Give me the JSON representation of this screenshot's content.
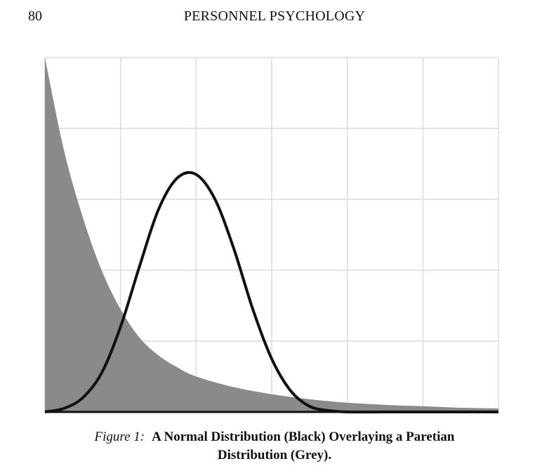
{
  "header": {
    "page_number": "80",
    "journal": "PERSONNEL PSYCHOLOGY"
  },
  "figure": {
    "label": "Figure 1:",
    "title_line1": "A Normal Distribution (Black) Overlaying a Paretian",
    "title_line2": "Distribution (Grey)."
  },
  "chart_data": {
    "type": "area",
    "title": "",
    "xlabel": "",
    "ylabel": "",
    "xlim": [
      0,
      6
    ],
    "ylim": [
      0,
      5
    ],
    "grid": true,
    "legend": "none",
    "series": [
      {
        "style": "grey filled area",
        "color": "#8a8a8a",
        "x": [
          0,
          0.25,
          0.5,
          0.75,
          1,
          1.25,
          1.5,
          1.75,
          2,
          2.5,
          3,
          3.5,
          4,
          4.5,
          5,
          5.5,
          6
        ],
        "y": [
          5,
          3.7,
          2.75,
          2.0,
          1.45,
          1.05,
          0.8,
          0.63,
          0.5,
          0.35,
          0.25,
          0.18,
          0.13,
          0.1,
          0.08,
          0.06,
          0.05
        ]
      },
      {
        "style": "black line",
        "color": "#111111",
        "x": [
          0,
          0.25,
          0.5,
          0.75,
          1,
          1.25,
          1.5,
          1.75,
          2,
          2.25,
          2.5,
          2.75,
          3,
          3.25,
          3.5,
          3.75,
          4,
          4.5,
          5,
          5.5,
          6
        ],
        "y": [
          0,
          0.05,
          0.2,
          0.55,
          1.2,
          2.05,
          2.85,
          3.3,
          3.35,
          3.0,
          2.3,
          1.45,
          0.75,
          0.3,
          0.08,
          0.02,
          0,
          0,
          0,
          0,
          0
        ]
      }
    ]
  }
}
